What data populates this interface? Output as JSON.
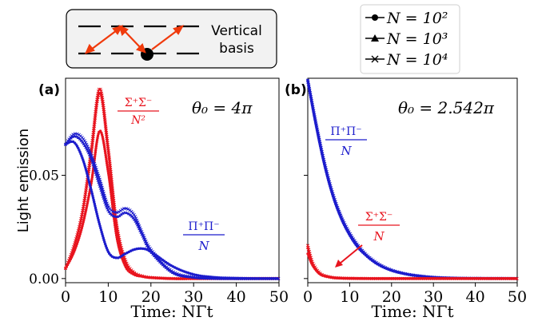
{
  "legend_box": {
    "line_N2": "N = 10²",
    "line_N3": "N = 10³",
    "line_N4": "N = 10⁴"
  },
  "schematic": {
    "label_line1": "Vertical",
    "label_line2": "basis"
  },
  "chart_data": [
    {
      "panel": "(a)",
      "type": "line",
      "annotation_theta": "θ₀ = 4π",
      "xlabel": "Time: NΓt",
      "ylabel": "Light emission",
      "xlim": [
        0,
        50
      ],
      "ylim": [
        -0.002,
        0.097
      ],
      "xticks": [
        0,
        10,
        20,
        30,
        40,
        50
      ],
      "yticks": [
        0.0,
        0.05
      ],
      "ytick_labels": [
        "0.00",
        "0.05"
      ],
      "colors": {
        "sigma": "#e8141e",
        "pi": "#1c1ccc"
      },
      "series": [
        {
          "group": "sigma",
          "label": "Σ⁺Σ⁻ / N²",
          "N": "10^2",
          "x": [
            0,
            2,
            4,
            6,
            8,
            10,
            12,
            14,
            16,
            18,
            20,
            25,
            30,
            35,
            40,
            45,
            50
          ],
          "y": [
            0.005,
            0.013,
            0.026,
            0.046,
            0.0715,
            0.0515,
            0.02,
            0.006,
            0.002,
            0.001,
            0.0005,
            0,
            0,
            0,
            0,
            0,
            0
          ]
        },
        {
          "group": "sigma",
          "label": "Σ⁺Σ⁻ / N²",
          "N": "10^3",
          "x": [
            0,
            2,
            4,
            6,
            8,
            10,
            12,
            14,
            16,
            18,
            20,
            25,
            30,
            35,
            40,
            45,
            50
          ],
          "y": [
            0.005,
            0.015,
            0.032,
            0.06,
            0.09,
            0.062,
            0.025,
            0.008,
            0.003,
            0.0012,
            0.0005,
            0,
            0,
            0,
            0,
            0,
            0
          ]
        },
        {
          "group": "sigma",
          "label": "Σ⁺Σ⁻ / N²",
          "N": "10^4",
          "x": [
            0,
            2,
            4,
            6,
            8,
            10,
            12,
            14,
            16,
            18,
            20,
            25,
            30,
            35,
            40,
            45,
            50
          ],
          "y": [
            0.005,
            0.016,
            0.033,
            0.062,
            0.092,
            0.063,
            0.026,
            0.009,
            0.003,
            0.0012,
            0.0005,
            0,
            0,
            0,
            0,
            0,
            0
          ]
        },
        {
          "group": "pi",
          "label": "Π⁺Π⁻ / N",
          "N": "10^2",
          "x": [
            0,
            2,
            4,
            6,
            8,
            10,
            12,
            14,
            16,
            18,
            20,
            25,
            30,
            35,
            40,
            45,
            50
          ],
          "y": [
            0.065,
            0.066,
            0.058,
            0.043,
            0.026,
            0.013,
            0.01,
            0.012,
            0.014,
            0.0145,
            0.013,
            0.006,
            0.002,
            0.0006,
            0.0002,
            0,
            0
          ]
        },
        {
          "group": "pi",
          "label": "Π⁺Π⁻ / N",
          "N": "10^3",
          "x": [
            0,
            2,
            4,
            6,
            8,
            10,
            12,
            14,
            16,
            18,
            20,
            25,
            30,
            35,
            40,
            45,
            50
          ],
          "y": [
            0.065,
            0.069,
            0.066,
            0.058,
            0.045,
            0.033,
            0.03,
            0.032,
            0.029,
            0.021,
            0.013,
            0.003,
            0.0006,
            0.0001,
            0,
            0,
            0
          ]
        },
        {
          "group": "pi",
          "label": "Π⁺Π⁻ / N",
          "N": "10^4",
          "x": [
            0,
            2,
            4,
            6,
            8,
            10,
            12,
            14,
            16,
            18,
            20,
            25,
            30,
            35,
            40,
            45,
            50
          ],
          "y": [
            0.065,
            0.07,
            0.068,
            0.06,
            0.048,
            0.035,
            0.032,
            0.034,
            0.031,
            0.022,
            0.014,
            0.0035,
            0.0007,
            0.0001,
            0,
            0,
            0
          ]
        }
      ]
    },
    {
      "panel": "(b)",
      "type": "line",
      "annotation_theta": "θ₀ = 2.542π",
      "xlabel": "Time: NΓt",
      "xlim": [
        0,
        50
      ],
      "ylim": [
        -0.002,
        0.097
      ],
      "xticks": [
        0,
        10,
        20,
        30,
        40,
        50
      ],
      "colors": {
        "sigma": "#e8141e",
        "pi": "#1c1ccc"
      },
      "series": [
        {
          "group": "pi",
          "label": "Π⁺Π⁻ / N",
          "N": "10^2",
          "x": [
            0,
            2,
            4,
            6,
            8,
            10,
            12,
            14,
            16,
            18,
            20,
            22,
            25,
            30,
            35,
            40,
            45,
            50
          ],
          "y": [
            0.096,
            0.074,
            0.055,
            0.04,
            0.029,
            0.021,
            0.015,
            0.011,
            0.0078,
            0.0055,
            0.0039,
            0.0028,
            0.0016,
            0.0006,
            0.0002,
            8e-05,
            3e-05,
            0
          ]
        },
        {
          "group": "pi",
          "label": "Π⁺Π⁻ / N",
          "N": "10^3",
          "x": [
            0,
            2,
            4,
            6,
            8,
            10,
            12,
            14,
            16,
            18,
            20,
            22,
            25,
            30,
            35,
            40,
            45,
            50
          ],
          "y": [
            0.096,
            0.075,
            0.056,
            0.041,
            0.03,
            0.022,
            0.016,
            0.0115,
            0.0082,
            0.0058,
            0.0041,
            0.0029,
            0.0017,
            0.0006,
            0.0002,
            8e-05,
            3e-05,
            0
          ]
        },
        {
          "group": "pi",
          "label": "Π⁺Π⁻ / N",
          "N": "10^4",
          "x": [
            0,
            2,
            4,
            6,
            8,
            10,
            12,
            14,
            16,
            18,
            20,
            22,
            25,
            30,
            35,
            40,
            45,
            50
          ],
          "y": [
            0.096,
            0.075,
            0.056,
            0.041,
            0.03,
            0.022,
            0.016,
            0.0115,
            0.0082,
            0.0058,
            0.0041,
            0.0029,
            0.0017,
            0.0006,
            0.0002,
            8e-05,
            3e-05,
            0
          ]
        },
        {
          "group": "sigma",
          "label": "Σ⁺Σ⁻ / N",
          "N": "10^2",
          "x": [
            0,
            1,
            2,
            3,
            4,
            6,
            8,
            10,
            15,
            20,
            30,
            40,
            50
          ],
          "y": [
            0.012,
            0.007,
            0.004,
            0.002,
            0.0012,
            0.0004,
            0.0002,
            0.0001,
            0,
            0,
            0,
            0,
            0
          ]
        },
        {
          "group": "sigma",
          "label": "Σ⁺Σ⁻ / N",
          "N": "10^3",
          "x": [
            0,
            1,
            2,
            3,
            4,
            6,
            8,
            10,
            15,
            20,
            30,
            40,
            50
          ],
          "y": [
            0.015,
            0.008,
            0.0045,
            0.0024,
            0.0014,
            0.0005,
            0.0002,
            0.0001,
            0,
            0,
            0,
            0,
            0
          ]
        },
        {
          "group": "sigma",
          "label": "Σ⁺Σ⁻ / N",
          "N": "10^4",
          "x": [
            0,
            1,
            2,
            3,
            4,
            6,
            8,
            10,
            15,
            20,
            30,
            40,
            50
          ],
          "y": [
            0.016,
            0.0085,
            0.0047,
            0.0025,
            0.0014,
            0.0005,
            0.0002,
            0.0001,
            0,
            0,
            0,
            0,
            0
          ]
        }
      ]
    }
  ],
  "panel_a_labels": {
    "sigma_num": "Σ⁺Σ⁻",
    "sigma_den": "N²",
    "pi_num": "Π⁺Π⁻",
    "pi_den": "N"
  },
  "panel_b_labels": {
    "pi_num": "Π⁺Π⁻",
    "pi_den": "N",
    "sigma_num": "Σ⁺Σ⁻",
    "sigma_den": "N"
  }
}
